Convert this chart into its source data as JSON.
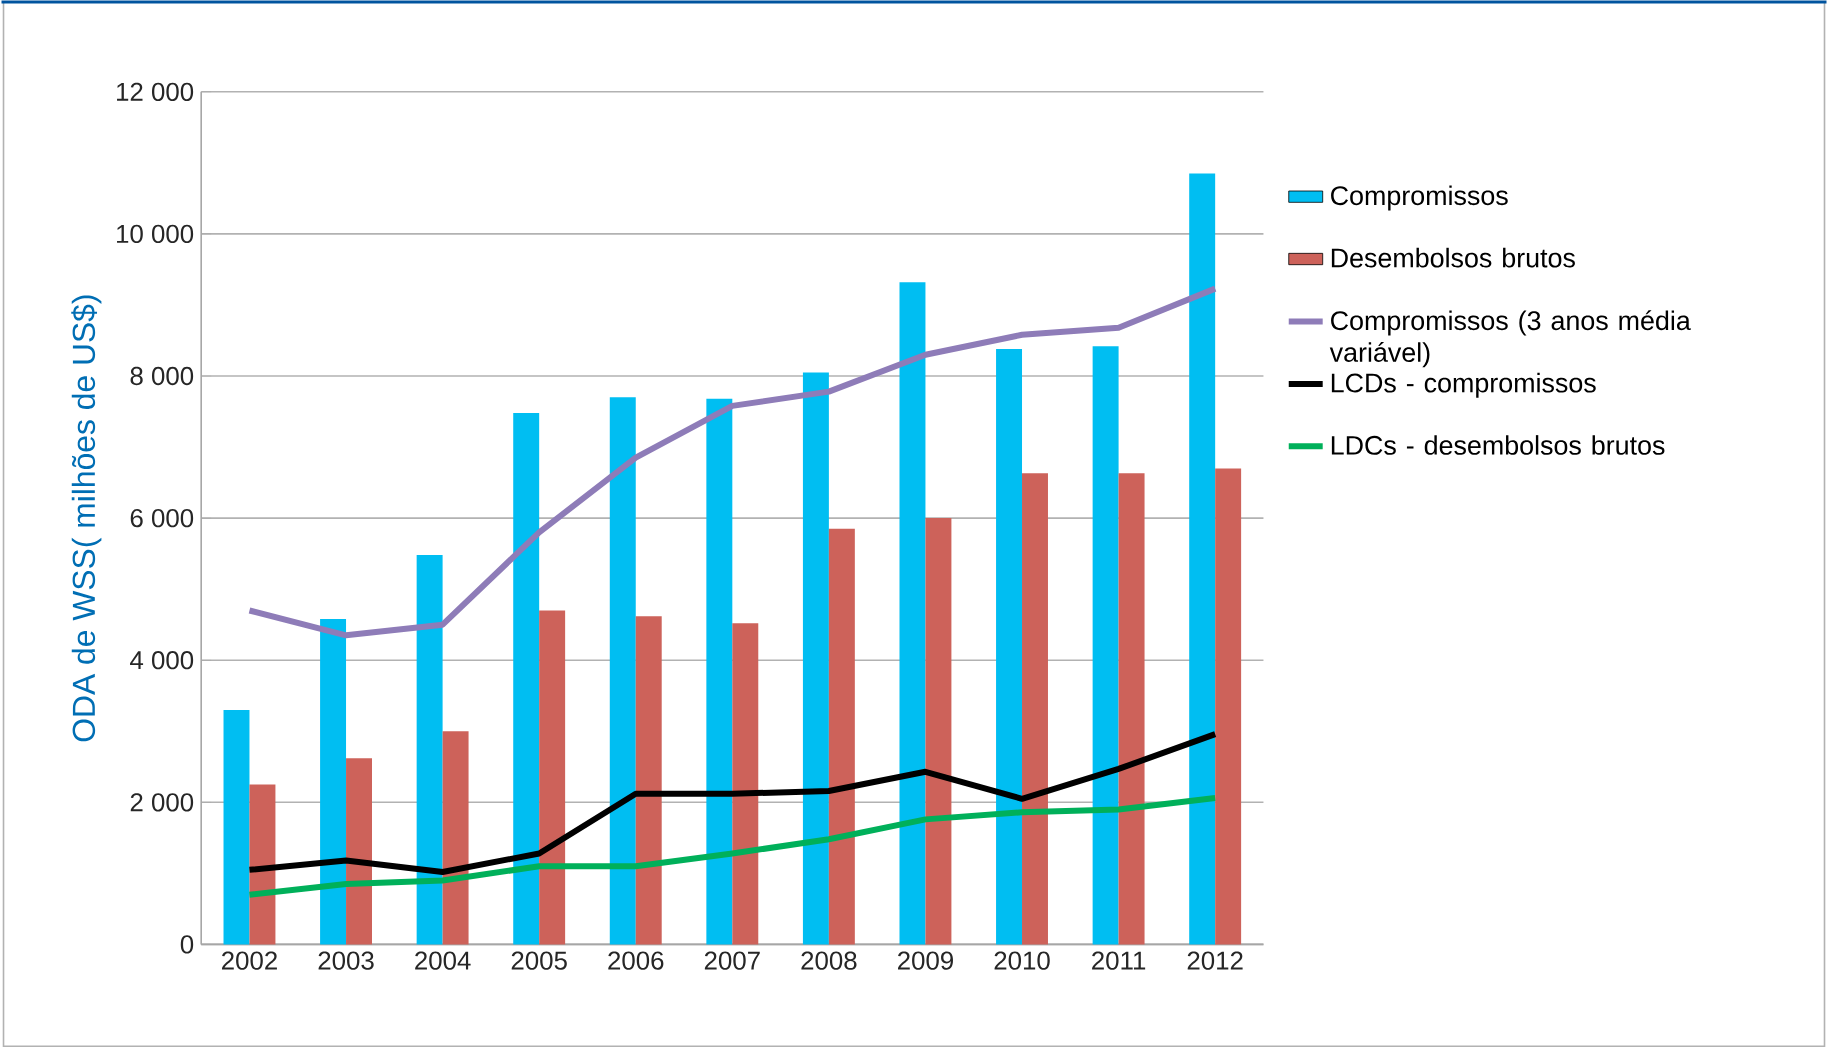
{
  "chart_data": {
    "type": "bar",
    "ylabel": "ODA de WSS( milhões de US$)",
    "categories": [
      "2002",
      "2003",
      "2004",
      "2005",
      "2006",
      "2007",
      "2008",
      "2009",
      "2010",
      "2011",
      "2012"
    ],
    "series": [
      {
        "name": "Compromissos",
        "color": "#00bef2",
        "values": [
          3300,
          4580,
          5480,
          7480,
          7700,
          7680,
          8050,
          9320,
          8380,
          8420,
          10850
        ]
      },
      {
        "name": "Desembolsos brutos",
        "color": "#cd625a",
        "values": [
          2250,
          2620,
          3000,
          4700,
          4620,
          4520,
          5850,
          6000,
          6630,
          6630,
          6700
        ]
      },
      {
        "name": "Compromissos (3 anos média variável)",
        "type": "line",
        "color": "#8e7cb8",
        "values": [
          4700,
          4350,
          4500,
          5800,
          6850,
          7580,
          7780,
          8300,
          8580,
          8680,
          9230
        ]
      },
      {
        "name": "LCDs - compromissos",
        "type": "line",
        "color": "#000000",
        "values": [
          1050,
          1180,
          1020,
          1280,
          2120,
          2120,
          2160,
          2430,
          2050,
          2470,
          2960
        ]
      },
      {
        "name": "LDCs - desembolsos brutos",
        "type": "line",
        "color": "#00b05a",
        "values": [
          700,
          850,
          900,
          1100,
          1100,
          1280,
          1480,
          1760,
          1860,
          1900,
          2060
        ]
      }
    ],
    "ylim": [
      0,
      12000
    ],
    "yticks": [
      {
        "value": 0,
        "label": "0"
      },
      {
        "value": 2000,
        "label": "2 000"
      },
      {
        "value": 4000,
        "label": "4 000"
      },
      {
        "value": 6000,
        "label": "6 000"
      },
      {
        "value": 8000,
        "label": "8 000"
      },
      {
        "value": 10000,
        "label": "10 000"
      },
      {
        "value": 12000,
        "label": "12 000"
      }
    ],
    "grid": "y",
    "legend": "right"
  }
}
